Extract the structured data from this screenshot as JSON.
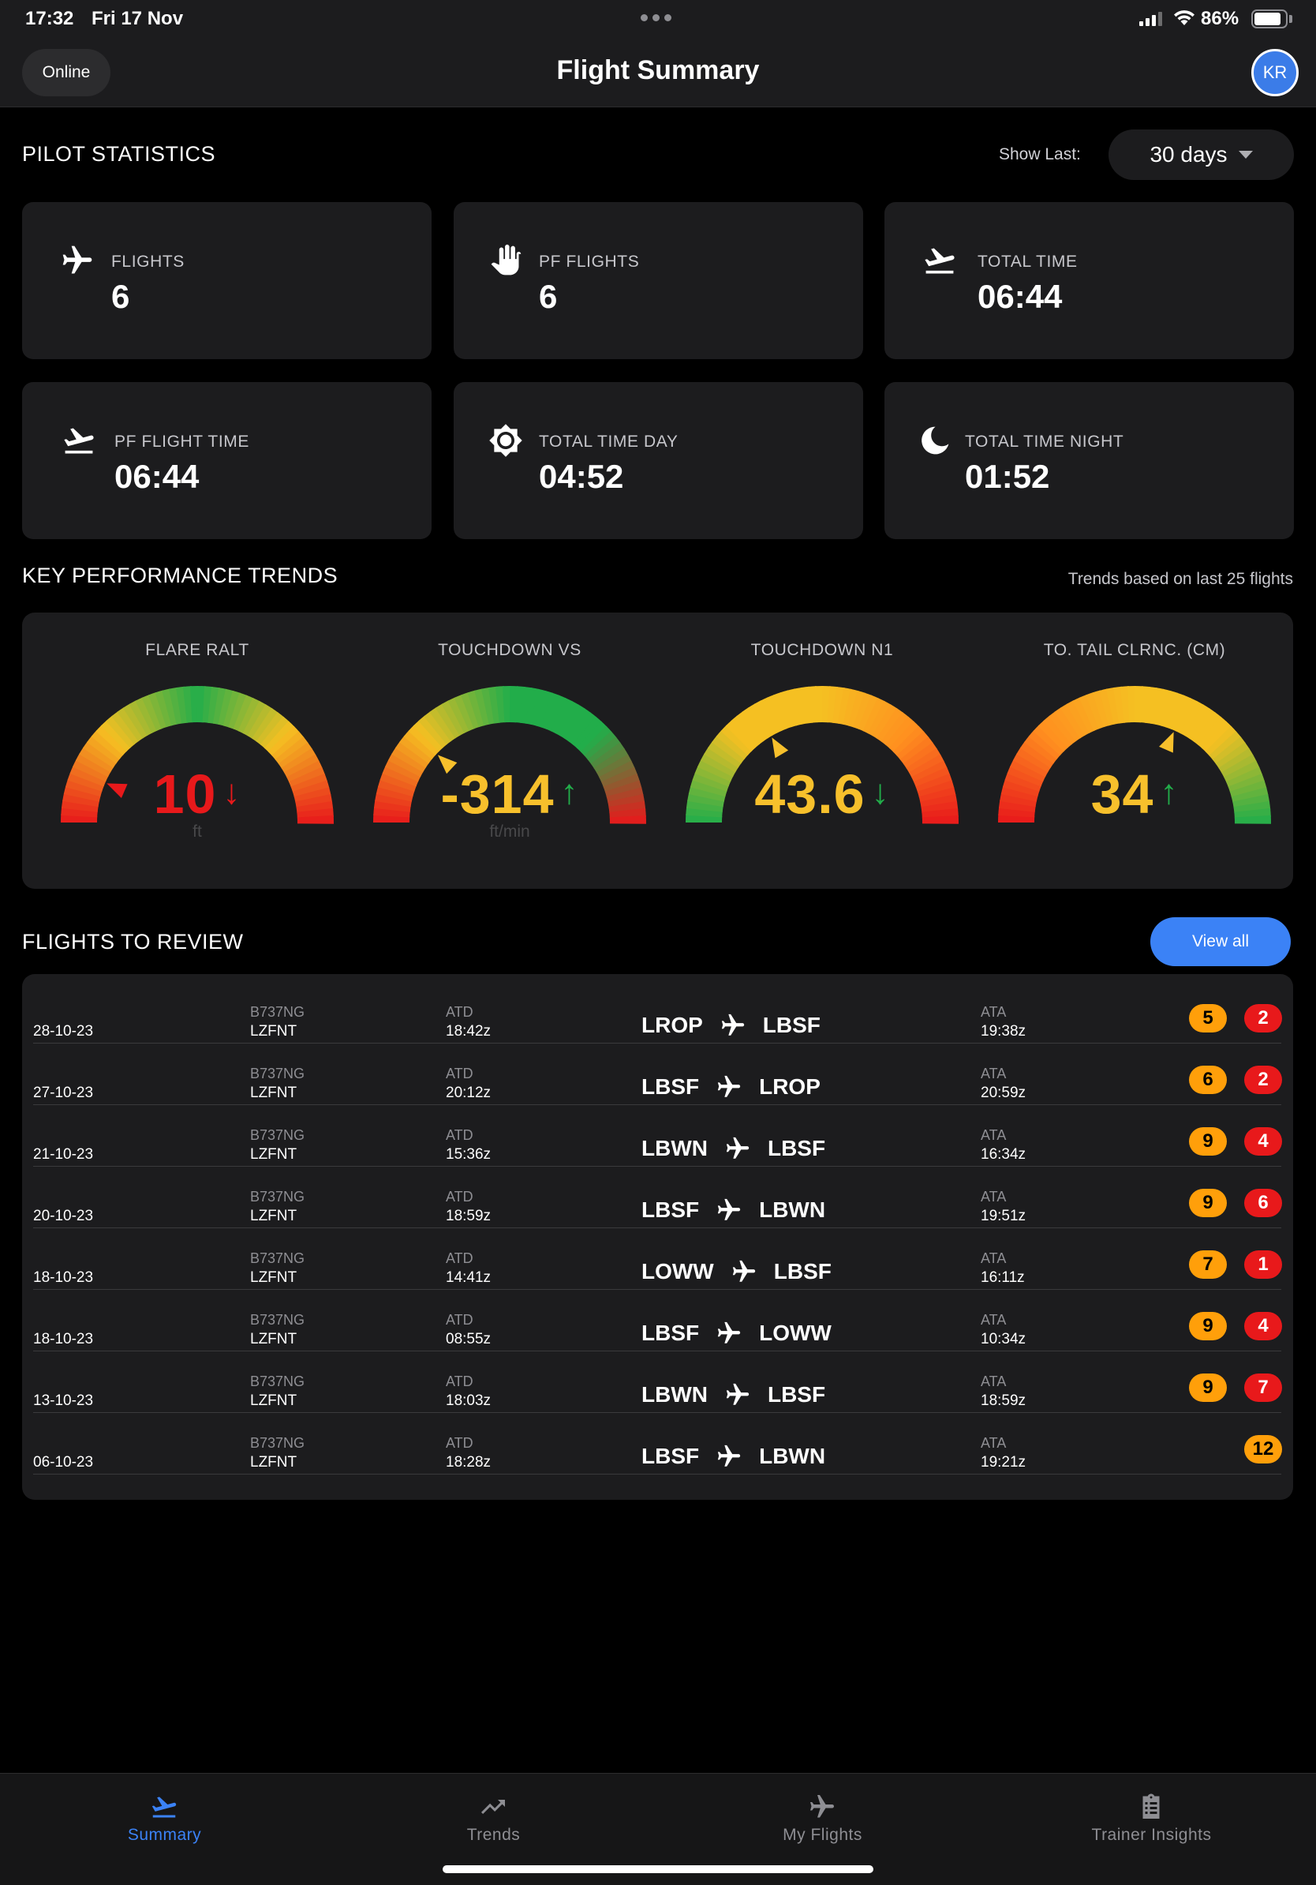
{
  "status_bar": {
    "time": "17:32",
    "date": "Fri 17 Nov",
    "battery": "86%",
    "battery_level": 0.86,
    "signal_bars": 3
  },
  "header": {
    "status_pill": "Online",
    "title": "Flight Summary",
    "avatar_initials": "KR"
  },
  "pilot_statistics": {
    "heading": "PILOT STATISTICS",
    "show_last_label": "Show Last:",
    "period": "30 days",
    "cards": [
      {
        "label": "FLIGHTS",
        "value": "6",
        "icon": "airplane-icon"
      },
      {
        "label": "PF FLIGHTS",
        "value": "6",
        "icon": "hand-icon"
      },
      {
        "label": "TOTAL TIME",
        "value": "06:44",
        "icon": "takeoff-icon"
      },
      {
        "label": "PF FLIGHT TIME",
        "value": "06:44",
        "icon": "takeoff-icon"
      },
      {
        "label": "TOTAL TIME DAY",
        "value": "04:52",
        "icon": "sun-icon"
      },
      {
        "label": "TOTAL TIME NIGHT",
        "value": "01:52",
        "icon": "moon-icon"
      }
    ]
  },
  "kpi": {
    "heading": "KEY PERFORMANCE TRENDS",
    "note": "Trends based on last 25 flights",
    "gauges": [
      {
        "label": "FLARE RALT",
        "value": "10",
        "unit": "ft",
        "trend": "down",
        "trend_arrow": "↓",
        "value_color": "#e8191b",
        "arrow_color": "#e8191b",
        "marker_fraction": 0.13,
        "marker_color": "#e8191b",
        "colors": [
          "#e8191b",
          "#f5c022",
          "#22ad4a",
          "#f5c022",
          "#e8191b"
        ]
      },
      {
        "label": "TOUCHDOWN VS",
        "value": "-314",
        "unit": "ft/min",
        "trend": "up",
        "trend_arrow": "↑",
        "value_color": "#f7c02c",
        "arrow_color": "#22ad4a",
        "marker_fraction": 0.24,
        "marker_color": "#f7c02c",
        "colors": [
          "#e8191b",
          "#f5c022",
          "#22ad4a",
          "#22ad4a",
          "#e8191b"
        ]
      },
      {
        "label": "TOUCHDOWN N1",
        "value": "43.6",
        "unit": "",
        "trend": "down",
        "trend_arrow": "↓",
        "value_color": "#f7c02c",
        "arrow_color": "#22ad4a",
        "marker_fraction": 0.33,
        "marker_color": "#f7c02c",
        "colors": [
          "#22ad4a",
          "#f5c022",
          "#f5c022",
          "#ff8f1f",
          "#e8191b"
        ]
      },
      {
        "label": "TO. TAIL CLRNC. (CM)",
        "value": "34",
        "unit": "",
        "trend": "up",
        "trend_arrow": "↑",
        "value_color": "#f7c02c",
        "arrow_color": "#22ad4a",
        "marker_fraction": 0.63,
        "marker_color": "#f7c02c",
        "colors": [
          "#e8191b",
          "#ff8f1f",
          "#f5c022",
          "#f5c022",
          "#22ad4a"
        ]
      }
    ]
  },
  "flights": {
    "heading": "FLIGHTS TO REVIEW",
    "view_all": "View all",
    "atd_label": "ATD",
    "ata_label": "ATA",
    "rows": [
      {
        "date": "28-10-23",
        "aircraft": "B737NG",
        "reg": "LZFNT",
        "atd": "18:42z",
        "from": "LROP",
        "to": "LBSF",
        "ata": "19:38z",
        "badges": [
          {
            "value": "5",
            "color": "orange"
          },
          {
            "value": "2",
            "color": "red"
          }
        ]
      },
      {
        "date": "27-10-23",
        "aircraft": "B737NG",
        "reg": "LZFNT",
        "atd": "20:12z",
        "from": "LBSF",
        "to": "LROP",
        "ata": "20:59z",
        "badges": [
          {
            "value": "6",
            "color": "orange"
          },
          {
            "value": "2",
            "color": "red"
          }
        ]
      },
      {
        "date": "21-10-23",
        "aircraft": "B737NG",
        "reg": "LZFNT",
        "atd": "15:36z",
        "from": "LBWN",
        "to": "LBSF",
        "ata": "16:34z",
        "badges": [
          {
            "value": "9",
            "color": "orange"
          },
          {
            "value": "4",
            "color": "red"
          }
        ]
      },
      {
        "date": "20-10-23",
        "aircraft": "B737NG",
        "reg": "LZFNT",
        "atd": "18:59z",
        "from": "LBSF",
        "to": "LBWN",
        "ata": "19:51z",
        "badges": [
          {
            "value": "9",
            "color": "orange"
          },
          {
            "value": "6",
            "color": "red"
          }
        ]
      },
      {
        "date": "18-10-23",
        "aircraft": "B737NG",
        "reg": "LZFNT",
        "atd": "14:41z",
        "from": "LOWW",
        "to": "LBSF",
        "ata": "16:11z",
        "badges": [
          {
            "value": "7",
            "color": "orange"
          },
          {
            "value": "1",
            "color": "red"
          }
        ]
      },
      {
        "date": "18-10-23",
        "aircraft": "B737NG",
        "reg": "LZFNT",
        "atd": "08:55z",
        "from": "LBSF",
        "to": "LOWW",
        "ata": "10:34z",
        "badges": [
          {
            "value": "9",
            "color": "orange"
          },
          {
            "value": "4",
            "color": "red"
          }
        ]
      },
      {
        "date": "13-10-23",
        "aircraft": "B737NG",
        "reg": "LZFNT",
        "atd": "18:03z",
        "from": "LBWN",
        "to": "LBSF",
        "ata": "18:59z",
        "badges": [
          {
            "value": "9",
            "color": "orange"
          },
          {
            "value": "7",
            "color": "red"
          }
        ]
      },
      {
        "date": "06-10-23",
        "aircraft": "B737NG",
        "reg": "LZFNT",
        "atd": "18:28z",
        "from": "LBSF",
        "to": "LBWN",
        "ata": "19:21z",
        "badges": [
          {
            "value": "12",
            "color": "orange"
          }
        ]
      }
    ]
  },
  "tabs": [
    {
      "label": "Summary",
      "icon": "takeoff-icon",
      "active": true
    },
    {
      "label": "Trends",
      "icon": "trend-icon",
      "active": false
    },
    {
      "label": "My Flights",
      "icon": "airplane-icon",
      "active": false
    },
    {
      "label": "Trainer Insights",
      "icon": "clipboard-icon",
      "active": false
    }
  ],
  "colors": {
    "accent": "#3b82f6",
    "card": "#1c1c1e",
    "background": "#000000"
  }
}
